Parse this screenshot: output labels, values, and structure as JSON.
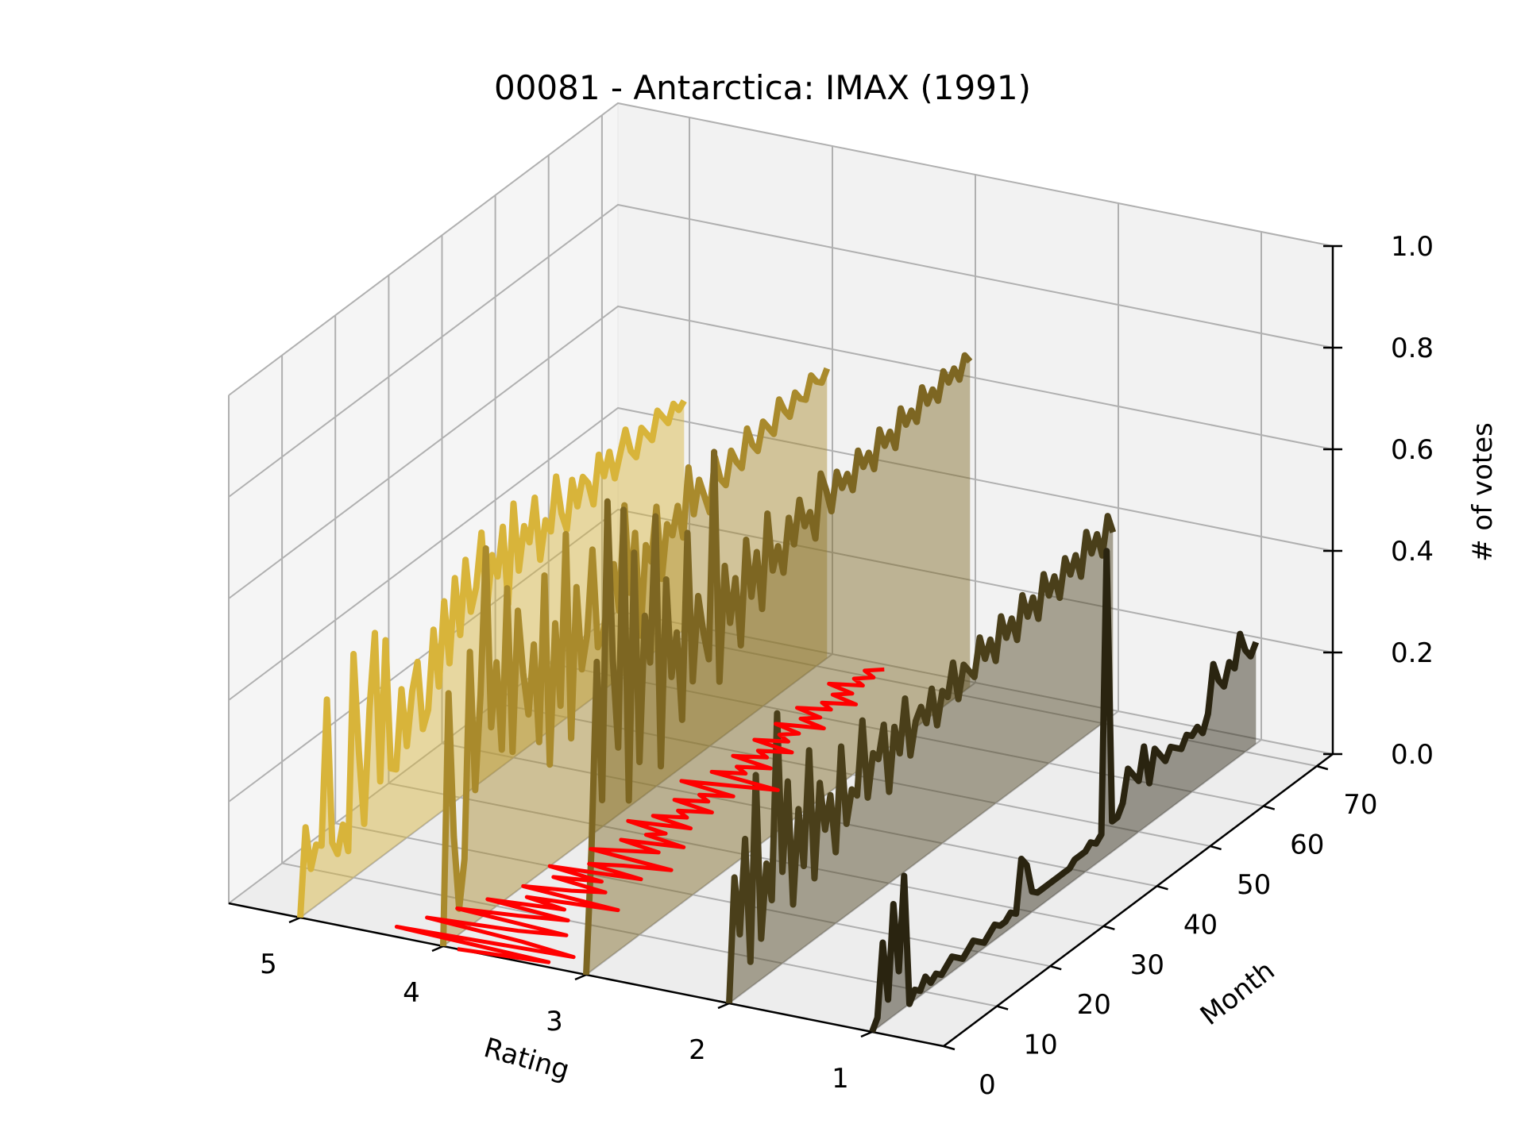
{
  "chart_data": {
    "type": "line",
    "projection": "3d",
    "title": "00081 - Antarctica: IMAX (1991)",
    "xlabel": "Rating",
    "ylabel": "Month",
    "zlabel": "# of votes",
    "x_ticks": [
      "5",
      "4",
      "3",
      "2",
      "1"
    ],
    "y_ticks": [
      "0",
      "10",
      "20",
      "30",
      "40",
      "50",
      "60",
      "70"
    ],
    "z_ticks": [
      "0.0",
      "0.2",
      "0.4",
      "0.6",
      "0.8",
      "1.0"
    ],
    "xlim": [
      0.5,
      5.5
    ],
    "ylim": [
      0,
      73
    ],
    "zlim": [
      0,
      1
    ],
    "grid": true,
    "months": [
      0,
      1,
      2,
      3,
      4,
      5,
      6,
      7,
      8,
      9,
      10,
      11,
      12,
      13,
      14,
      15,
      16,
      17,
      18,
      19,
      20,
      21,
      22,
      23,
      24,
      25,
      26,
      27,
      28,
      29,
      30,
      31,
      32,
      33,
      34,
      35,
      36,
      37,
      38,
      39,
      40,
      41,
      42,
      43,
      44,
      45,
      46,
      47,
      48,
      49,
      50,
      51,
      52,
      53,
      54,
      55,
      56,
      57,
      58,
      59,
      60,
      61,
      62,
      63,
      64,
      65,
      66,
      67,
      68,
      69,
      70,
      71,
      72
    ],
    "series": [
      {
        "rating": 5,
        "color": "#d8b43a",
        "values": [
          0.0,
          0.17,
          0.08,
          0.12,
          0.11,
          0.39,
          0.1,
          0.07,
          0.12,
          0.06,
          0.44,
          0.24,
          0.09,
          0.31,
          0.45,
          0.15,
          0.42,
          0.16,
          0.15,
          0.3,
          0.18,
          0.28,
          0.33,
          0.19,
          0.22,
          0.37,
          0.25,
          0.41,
          0.28,
          0.44,
          0.32,
          0.46,
          0.35,
          0.39,
          0.49,
          0.33,
          0.43,
          0.38,
          0.47,
          0.31,
          0.5,
          0.36,
          0.44,
          0.4,
          0.48,
          0.35,
          0.42,
          0.39,
          0.49,
          0.41,
          0.37,
          0.46,
          0.4,
          0.45,
          0.43,
          0.38,
          0.47,
          0.42,
          0.46,
          0.4,
          0.44,
          0.48,
          0.43,
          0.41,
          0.46,
          0.44,
          0.42,
          0.47,
          0.45,
          0.43,
          0.46,
          0.44,
          0.45
        ]
      },
      {
        "rating": 4,
        "color": "#a98a2c",
        "values": [
          0.0,
          0.49,
          0.2,
          0.05,
          0.14,
          0.54,
          0.26,
          0.44,
          0.72,
          0.36,
          0.48,
          0.3,
          0.61,
          0.28,
          0.55,
          0.42,
          0.33,
          0.46,
          0.26,
          0.58,
          0.2,
          0.47,
          0.3,
          0.63,
          0.22,
          0.51,
          0.34,
          0.4,
          0.56,
          0.36,
          0.38,
          0.44,
          0.5,
          0.4,
          0.6,
          0.42,
          0.53,
          0.32,
          0.49,
          0.45,
          0.55,
          0.4,
          0.5,
          0.47,
          0.52,
          0.45,
          0.58,
          0.48,
          0.54,
          0.5,
          0.46,
          0.56,
          0.51,
          0.49,
          0.55,
          0.52,
          0.5,
          0.57,
          0.53,
          0.51,
          0.56,
          0.54,
          0.52,
          0.58,
          0.55,
          0.53,
          0.57,
          0.55,
          0.54,
          0.58,
          0.56,
          0.55,
          0.57
        ]
      },
      {
        "rating": 3,
        "color": "#7d6622",
        "values": [
          0.0,
          0.24,
          0.6,
          0.32,
          0.9,
          0.58,
          0.4,
          0.86,
          0.28,
          0.76,
          0.34,
          0.62,
          0.52,
          0.8,
          0.3,
          0.66,
          0.46,
          0.54,
          0.36,
          0.72,
          0.42,
          0.58,
          0.5,
          0.44,
          0.84,
          0.38,
          0.6,
          0.48,
          0.56,
          0.42,
          0.62,
          0.5,
          0.58,
          0.46,
          0.64,
          0.52,
          0.56,
          0.5,
          0.6,
          0.54,
          0.62,
          0.56,
          0.58,
          0.52,
          0.64,
          0.6,
          0.55,
          0.62,
          0.58,
          0.6,
          0.56,
          0.63,
          0.59,
          0.61,
          0.57,
          0.64,
          0.6,
          0.62,
          0.58,
          0.65,
          0.61,
          0.63,
          0.6,
          0.66,
          0.62,
          0.64,
          0.61,
          0.66,
          0.63,
          0.65,
          0.62,
          0.66,
          0.64
        ]
      },
      {
        "rating": 2,
        "color": "#4a3f1a",
        "values": [
          0.0,
          0.24,
          0.12,
          0.3,
          0.05,
          0.41,
          0.08,
          0.22,
          0.14,
          0.5,
          0.18,
          0.35,
          0.1,
          0.28,
          0.16,
          0.38,
          0.12,
          0.3,
          0.2,
          0.26,
          0.14,
          0.34,
          0.18,
          0.24,
          0.22,
          0.36,
          0.2,
          0.28,
          0.26,
          0.32,
          0.18,
          0.3,
          0.24,
          0.34,
          0.22,
          0.28,
          0.3,
          0.26,
          0.32,
          0.24,
          0.3,
          0.28,
          0.34,
          0.26,
          0.32,
          0.3,
          0.28,
          0.35,
          0.3,
          0.33,
          0.28,
          0.36,
          0.31,
          0.34,
          0.29,
          0.37,
          0.32,
          0.35,
          0.3,
          0.38,
          0.33,
          0.36,
          0.31,
          0.38,
          0.34,
          0.37,
          0.32,
          0.4,
          0.35,
          0.38,
          0.33,
          0.4,
          0.36
        ]
      },
      {
        "rating": 1,
        "color": "#2a2410",
        "values": [
          0.0,
          0.02,
          0.16,
          0.04,
          0.22,
          0.08,
          0.26,
          0.0,
          0.02,
          0.01,
          0.03,
          0.01,
          0.02,
          0.01,
          0.02,
          0.03,
          0.02,
          0.01,
          0.02,
          0.03,
          0.02,
          0.01,
          0.02,
          0.03,
          0.02,
          0.02,
          0.03,
          0.02,
          0.12,
          0.1,
          0.04,
          0.03,
          0.03,
          0.03,
          0.03,
          0.03,
          0.03,
          0.03,
          0.04,
          0.04,
          0.04,
          0.05,
          0.04,
          0.05,
          0.6,
          0.06,
          0.06,
          0.08,
          0.14,
          0.12,
          0.1,
          0.16,
          0.08,
          0.14,
          0.12,
          0.1,
          0.12,
          0.11,
          0.1,
          0.12,
          0.11,
          0.12,
          0.1,
          0.13,
          0.22,
          0.18,
          0.16,
          0.2,
          0.18,
          0.24,
          0.2,
          0.18,
          0.2
        ]
      }
    ],
    "mean_series": {
      "color": "#ff0000",
      "values": [
        3.9,
        3.3,
        4.4,
        3.2,
        3.6,
        4.3,
        3.7,
        3.4,
        4.2,
        3.8,
        3.5,
        4.1,
        3.6,
        3.9,
        3.3,
        4.0,
        3.7,
        3.5,
        3.9,
        3.6,
        4.0,
        3.4,
        3.8,
        3.6,
        3.3,
        3.9,
        3.7,
        3.5,
        3.8,
        3.4,
        3.7,
        3.6,
        3.9,
        3.5,
        3.8,
        3.6,
        3.7,
        3.5,
        3.8,
        3.6,
        3.7,
        3.5,
        3.9,
        3.6,
        3.3,
        3.8,
        3.6,
        3.7,
        3.5,
        3.8,
        3.6,
        3.7,
        3.5,
        3.8,
        3.6,
        3.7,
        3.6,
        3.8,
        3.5,
        3.7,
        3.6,
        3.8,
        3.6,
        3.7,
        3.5,
        3.7,
        3.6,
        3.8,
        3.6,
        3.7,
        3.6,
        3.7,
        3.6
      ]
    }
  }
}
